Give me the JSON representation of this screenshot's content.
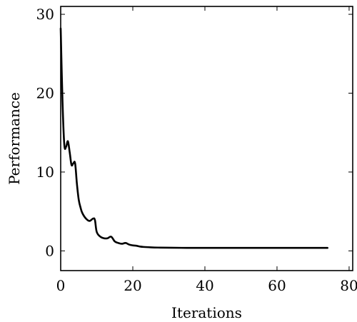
{
  "chart_data": {
    "type": "line",
    "title": "",
    "xlabel": "Iterations",
    "ylabel": "Performance",
    "xlim": [
      0,
      81
    ],
    "ylim": [
      -2.5,
      31
    ],
    "xticks": [
      0,
      20,
      40,
      60,
      80
    ],
    "yticks": [
      0,
      10,
      20,
      30
    ],
    "grid": false,
    "legend": "none",
    "series": [
      {
        "color": "#000000",
        "x": [
          0,
          0.5,
          1,
          1.5,
          2,
          2.5,
          3,
          3.5,
          4,
          4.5,
          5,
          5.5,
          6,
          7,
          8,
          9,
          9.5,
          10,
          11,
          12,
          13,
          14,
          15,
          16,
          17,
          18,
          19,
          20,
          21,
          22,
          23,
          25,
          27,
          30,
          35,
          40,
          45,
          50,
          55,
          60,
          65,
          70,
          74
        ],
        "y": [
          28.2,
          19,
          13.5,
          13.2,
          13.9,
          12.5,
          10.9,
          11.1,
          11.1,
          8.5,
          6.5,
          5.5,
          4.8,
          4.1,
          3.8,
          4.1,
          3.9,
          2.4,
          1.8,
          1.6,
          1.6,
          1.8,
          1.2,
          1.0,
          0.9,
          1.0,
          0.8,
          0.7,
          0.65,
          0.55,
          0.5,
          0.45,
          0.42,
          0.4,
          0.38,
          0.38,
          0.38,
          0.38,
          0.38,
          0.38,
          0.38,
          0.38,
          0.38
        ]
      }
    ]
  }
}
